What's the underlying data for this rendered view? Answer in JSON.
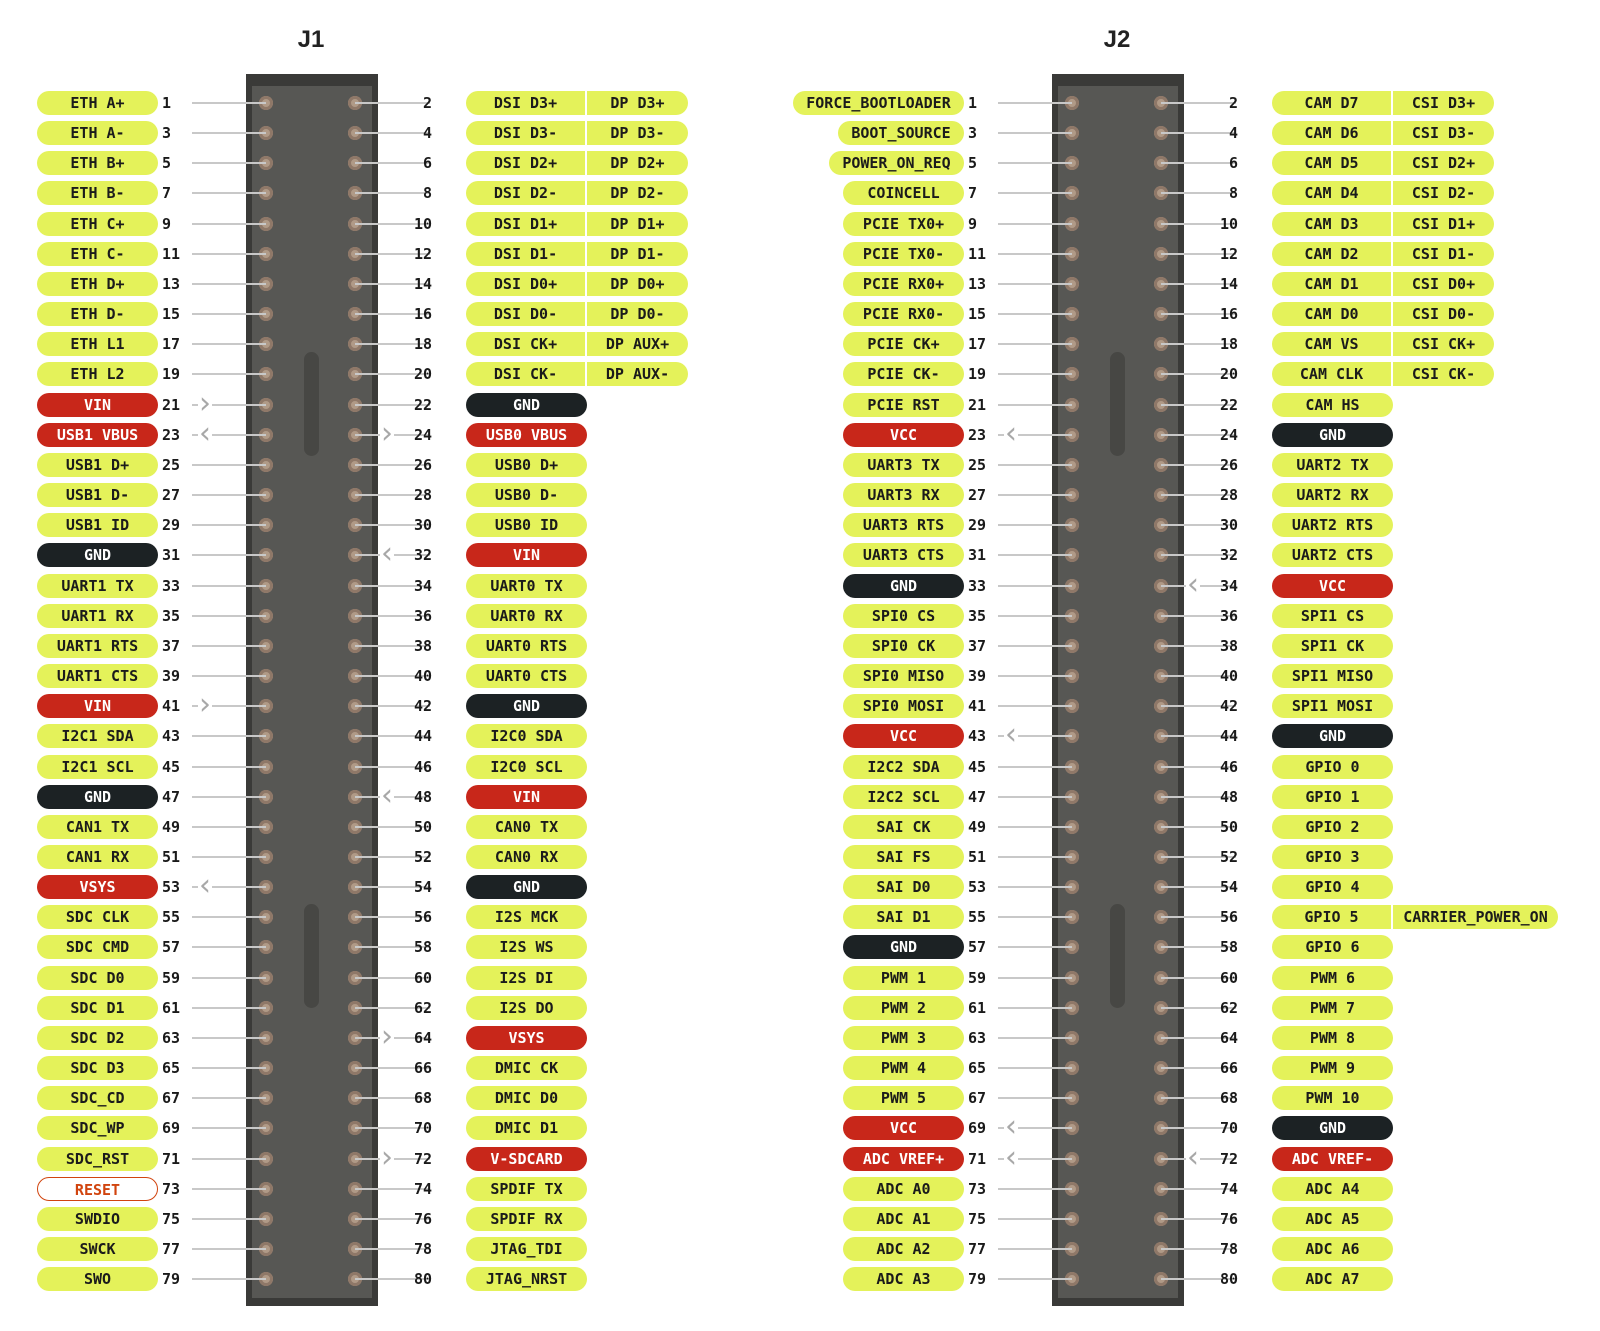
{
  "connectors": [
    {
      "title": "J1",
      "left": {
        "1": {
          "labels": [
            "ETH A+"
          ],
          "type": "signal"
        },
        "3": {
          "labels": [
            "ETH A-"
          ],
          "type": "signal"
        },
        "5": {
          "labels": [
            "ETH B+"
          ],
          "type": "signal"
        },
        "7": {
          "labels": [
            "ETH B-"
          ],
          "type": "signal"
        },
        "9": {
          "labels": [
            "ETH C+"
          ],
          "type": "signal"
        },
        "11": {
          "labels": [
            "ETH C-"
          ],
          "type": "signal"
        },
        "13": {
          "labels": [
            "ETH D+"
          ],
          "type": "signal"
        },
        "15": {
          "labels": [
            "ETH D-"
          ],
          "type": "signal"
        },
        "17": {
          "labels": [
            "ETH L1"
          ],
          "type": "signal"
        },
        "19": {
          "labels": [
            "ETH L2"
          ],
          "type": "signal"
        },
        "21": {
          "labels": [
            "VIN"
          ],
          "type": "power",
          "arrow": "in"
        },
        "23": {
          "labels": [
            "USB1 VBUS"
          ],
          "type": "power",
          "arrow": "out"
        },
        "25": {
          "labels": [
            "USB1 D+"
          ],
          "type": "signal"
        },
        "27": {
          "labels": [
            "USB1 D-"
          ],
          "type": "signal"
        },
        "29": {
          "labels": [
            "USB1 ID"
          ],
          "type": "signal"
        },
        "31": {
          "labels": [
            "GND"
          ],
          "type": "ground"
        },
        "33": {
          "labels": [
            "UART1 TX"
          ],
          "type": "signal"
        },
        "35": {
          "labels": [
            "UART1 RX"
          ],
          "type": "signal"
        },
        "37": {
          "labels": [
            "UART1 RTS"
          ],
          "type": "signal"
        },
        "39": {
          "labels": [
            "UART1 CTS"
          ],
          "type": "signal"
        },
        "41": {
          "labels": [
            "VIN"
          ],
          "type": "power",
          "arrow": "in"
        },
        "43": {
          "labels": [
            "I2C1 SDA"
          ],
          "type": "signal"
        },
        "45": {
          "labels": [
            "I2C1 SCL"
          ],
          "type": "signal"
        },
        "47": {
          "labels": [
            "GND"
          ],
          "type": "ground"
        },
        "49": {
          "labels": [
            "CAN1 TX"
          ],
          "type": "signal"
        },
        "51": {
          "labels": [
            "CAN1 RX"
          ],
          "type": "signal"
        },
        "53": {
          "labels": [
            "VSYS"
          ],
          "type": "power",
          "arrow": "out"
        },
        "55": {
          "labels": [
            "SDC CLK"
          ],
          "type": "signal"
        },
        "57": {
          "labels": [
            "SDC CMD"
          ],
          "type": "signal"
        },
        "59": {
          "labels": [
            "SDC D0"
          ],
          "type": "signal"
        },
        "61": {
          "labels": [
            "SDC D1"
          ],
          "type": "signal"
        },
        "63": {
          "labels": [
            "SDC D2"
          ],
          "type": "signal"
        },
        "65": {
          "labels": [
            "SDC D3"
          ],
          "type": "signal"
        },
        "67": {
          "labels": [
            "SDC_CD"
          ],
          "type": "signal"
        },
        "69": {
          "labels": [
            "SDC_WP"
          ],
          "type": "signal"
        },
        "71": {
          "labels": [
            "SDC_RST"
          ],
          "type": "signal"
        },
        "73": {
          "labels": [
            "RESET"
          ],
          "type": "reset"
        },
        "75": {
          "labels": [
            "SWDIO"
          ],
          "type": "signal"
        },
        "77": {
          "labels": [
            "SWCK"
          ],
          "type": "signal"
        },
        "79": {
          "labels": [
            "SWO"
          ],
          "type": "signal"
        }
      },
      "right": {
        "2": {
          "labels": [
            "DSI D3+",
            "DP D3+"
          ],
          "type": "signal"
        },
        "4": {
          "labels": [
            "DSI D3-",
            "DP D3-"
          ],
          "type": "signal"
        },
        "6": {
          "labels": [
            "DSI D2+",
            "DP D2+"
          ],
          "type": "signal"
        },
        "8": {
          "labels": [
            "DSI D2-",
            "DP D2-"
          ],
          "type": "signal"
        },
        "10": {
          "labels": [
            "DSI D1+",
            "DP D1+"
          ],
          "type": "signal"
        },
        "12": {
          "labels": [
            "DSI D1-",
            "DP D1-"
          ],
          "type": "signal"
        },
        "14": {
          "labels": [
            "DSI D0+",
            "DP D0+"
          ],
          "type": "signal"
        },
        "16": {
          "labels": [
            "DSI D0-",
            "DP D0-"
          ],
          "type": "signal"
        },
        "18": {
          "labels": [
            "DSI CK+",
            "DP AUX+"
          ],
          "type": "signal"
        },
        "20": {
          "labels": [
            "DSI CK-",
            "DP AUX-"
          ],
          "type": "signal"
        },
        "22": {
          "labels": [
            "GND"
          ],
          "type": "ground"
        },
        "24": {
          "labels": [
            "USB0 VBUS"
          ],
          "type": "power",
          "arrow": "out"
        },
        "26": {
          "labels": [
            "USB0 D+"
          ],
          "type": "signal"
        },
        "28": {
          "labels": [
            "USB0 D-"
          ],
          "type": "signal"
        },
        "30": {
          "labels": [
            "USB0 ID"
          ],
          "type": "signal"
        },
        "32": {
          "labels": [
            "VIN"
          ],
          "type": "power",
          "arrow": "in"
        },
        "34": {
          "labels": [
            "UART0 TX"
          ],
          "type": "signal"
        },
        "36": {
          "labels": [
            "UART0 RX"
          ],
          "type": "signal"
        },
        "38": {
          "labels": [
            "UART0 RTS"
          ],
          "type": "signal"
        },
        "40": {
          "labels": [
            "UART0 CTS"
          ],
          "type": "signal"
        },
        "42": {
          "labels": [
            "GND"
          ],
          "type": "ground"
        },
        "44": {
          "labels": [
            "I2C0 SDA"
          ],
          "type": "signal"
        },
        "46": {
          "labels": [
            "I2C0 SCL"
          ],
          "type": "signal"
        },
        "48": {
          "labels": [
            "VIN"
          ],
          "type": "power",
          "arrow": "in"
        },
        "50": {
          "labels": [
            "CAN0 TX"
          ],
          "type": "signal"
        },
        "52": {
          "labels": [
            "CAN0 RX"
          ],
          "type": "signal"
        },
        "54": {
          "labels": [
            "GND"
          ],
          "type": "ground"
        },
        "56": {
          "labels": [
            "I2S MCK"
          ],
          "type": "signal"
        },
        "58": {
          "labels": [
            "I2S WS"
          ],
          "type": "signal"
        },
        "60": {
          "labels": [
            "I2S DI"
          ],
          "type": "signal"
        },
        "62": {
          "labels": [
            "I2S DO"
          ],
          "type": "signal"
        },
        "64": {
          "labels": [
            "VSYS"
          ],
          "type": "power",
          "arrow": "out"
        },
        "66": {
          "labels": [
            "DMIC CK"
          ],
          "type": "signal"
        },
        "68": {
          "labels": [
            "DMIC D0"
          ],
          "type": "signal"
        },
        "70": {
          "labels": [
            "DMIC D1"
          ],
          "type": "signal"
        },
        "72": {
          "labels": [
            "V-SDCARD"
          ],
          "type": "power",
          "arrow": "out"
        },
        "74": {
          "labels": [
            "SPDIF TX"
          ],
          "type": "signal"
        },
        "76": {
          "labels": [
            "SPDIF RX"
          ],
          "type": "signal"
        },
        "78": {
          "labels": [
            "JTAG_TDI"
          ],
          "type": "signal"
        },
        "80": {
          "labels": [
            "JTAG_NRST"
          ],
          "type": "signal"
        }
      }
    },
    {
      "title": "J2",
      "left": {
        "1": {
          "labels": [
            "FORCE_BOOTLOADER"
          ],
          "type": "signal"
        },
        "3": {
          "labels": [
            "BOOT_SOURCE"
          ],
          "type": "signal"
        },
        "5": {
          "labels": [
            "POWER_ON_REQ"
          ],
          "type": "signal"
        },
        "7": {
          "labels": [
            "COINCELL"
          ],
          "type": "signal"
        },
        "9": {
          "labels": [
            "PCIE TX0+"
          ],
          "type": "signal"
        },
        "11": {
          "labels": [
            "PCIE TX0-"
          ],
          "type": "signal"
        },
        "13": {
          "labels": [
            "PCIE RX0+"
          ],
          "type": "signal"
        },
        "15": {
          "labels": [
            "PCIE RX0-"
          ],
          "type": "signal"
        },
        "17": {
          "labels": [
            "PCIE CK+"
          ],
          "type": "signal"
        },
        "19": {
          "labels": [
            "PCIE CK-"
          ],
          "type": "signal"
        },
        "21": {
          "labels": [
            "PCIE RST"
          ],
          "type": "signal"
        },
        "23": {
          "labels": [
            "VCC"
          ],
          "type": "power",
          "arrow": "out"
        },
        "25": {
          "labels": [
            "UART3 TX"
          ],
          "type": "signal"
        },
        "27": {
          "labels": [
            "UART3 RX"
          ],
          "type": "signal"
        },
        "29": {
          "labels": [
            "UART3 RTS"
          ],
          "type": "signal"
        },
        "31": {
          "labels": [
            "UART3 CTS"
          ],
          "type": "signal"
        },
        "33": {
          "labels": [
            "GND"
          ],
          "type": "ground"
        },
        "35": {
          "labels": [
            "SPI0 CS"
          ],
          "type": "signal"
        },
        "37": {
          "labels": [
            "SPI0 CK"
          ],
          "type": "signal"
        },
        "39": {
          "labels": [
            "SPI0 MISO"
          ],
          "type": "signal"
        },
        "41": {
          "labels": [
            "SPI0 MOSI"
          ],
          "type": "signal"
        },
        "43": {
          "labels": [
            "VCC"
          ],
          "type": "power",
          "arrow": "out"
        },
        "45": {
          "labels": [
            "I2C2 SDA"
          ],
          "type": "signal"
        },
        "47": {
          "labels": [
            "I2C2 SCL"
          ],
          "type": "signal"
        },
        "49": {
          "labels": [
            "SAI CK"
          ],
          "type": "signal"
        },
        "51": {
          "labels": [
            "SAI FS"
          ],
          "type": "signal"
        },
        "53": {
          "labels": [
            "SAI D0"
          ],
          "type": "signal"
        },
        "55": {
          "labels": [
            "SAI D1"
          ],
          "type": "signal"
        },
        "57": {
          "labels": [
            "GND"
          ],
          "type": "ground"
        },
        "59": {
          "labels": [
            "PWM 1"
          ],
          "type": "signal"
        },
        "61": {
          "labels": [
            "PWM 2"
          ],
          "type": "signal"
        },
        "63": {
          "labels": [
            "PWM 3"
          ],
          "type": "signal"
        },
        "65": {
          "labels": [
            "PWM 4"
          ],
          "type": "signal"
        },
        "67": {
          "labels": [
            "PWM 5"
          ],
          "type": "signal"
        },
        "69": {
          "labels": [
            "VCC"
          ],
          "type": "power",
          "arrow": "out"
        },
        "71": {
          "labels": [
            "ADC VREF+"
          ],
          "type": "power",
          "arrow": "out"
        },
        "73": {
          "labels": [
            "ADC A0"
          ],
          "type": "signal"
        },
        "75": {
          "labels": [
            "ADC A1"
          ],
          "type": "signal"
        },
        "77": {
          "labels": [
            "ADC A2"
          ],
          "type": "signal"
        },
        "79": {
          "labels": [
            "ADC A3"
          ],
          "type": "signal"
        }
      },
      "right": {
        "2": {
          "labels": [
            "CAM D7",
            "CSI D3+"
          ],
          "type": "signal"
        },
        "4": {
          "labels": [
            "CAM D6",
            "CSI D3-"
          ],
          "type": "signal"
        },
        "6": {
          "labels": [
            "CAM D5",
            "CSI D2+"
          ],
          "type": "signal"
        },
        "8": {
          "labels": [
            "CAM D4",
            "CSI D2-"
          ],
          "type": "signal"
        },
        "10": {
          "labels": [
            "CAM D3",
            "CSI D1+"
          ],
          "type": "signal"
        },
        "12": {
          "labels": [
            "CAM D2",
            "CSI D1-"
          ],
          "type": "signal"
        },
        "14": {
          "labels": [
            "CAM D1",
            "CSI D0+"
          ],
          "type": "signal"
        },
        "16": {
          "labels": [
            "CAM D0",
            "CSI D0-"
          ],
          "type": "signal"
        },
        "18": {
          "labels": [
            "CAM VS",
            "CSI CK+"
          ],
          "type": "signal"
        },
        "20": {
          "labels": [
            "CAM CLK",
            "CSI CK-"
          ],
          "type": "signal"
        },
        "22": {
          "labels": [
            "CAM HS"
          ],
          "type": "signal"
        },
        "24": {
          "labels": [
            "GND"
          ],
          "type": "ground"
        },
        "26": {
          "labels": [
            "UART2 TX"
          ],
          "type": "signal"
        },
        "28": {
          "labels": [
            "UART2 RX"
          ],
          "type": "signal"
        },
        "30": {
          "labels": [
            "UART2 RTS"
          ],
          "type": "signal"
        },
        "32": {
          "labels": [
            "UART2 CTS"
          ],
          "type": "signal"
        },
        "34": {
          "labels": [
            "VCC"
          ],
          "type": "power",
          "arrow": "in"
        },
        "36": {
          "labels": [
            "SPI1 CS"
          ],
          "type": "signal"
        },
        "38": {
          "labels": [
            "SPI1 CK"
          ],
          "type": "signal"
        },
        "40": {
          "labels": [
            "SPI1 MISO"
          ],
          "type": "signal"
        },
        "42": {
          "labels": [
            "SPI1 MOSI"
          ],
          "type": "signal"
        },
        "44": {
          "labels": [
            "GND"
          ],
          "type": "ground"
        },
        "46": {
          "labels": [
            "GPIO 0"
          ],
          "type": "signal"
        },
        "48": {
          "labels": [
            "GPIO 1"
          ],
          "type": "signal"
        },
        "50": {
          "labels": [
            "GPIO 2"
          ],
          "type": "signal"
        },
        "52": {
          "labels": [
            "GPIO 3"
          ],
          "type": "signal"
        },
        "54": {
          "labels": [
            "GPIO 4"
          ],
          "type": "signal"
        },
        "56": {
          "labels": [
            "GPIO 5",
            "CARRIER_POWER_ON"
          ],
          "type": "signal"
        },
        "58": {
          "labels": [
            "GPIO 6"
          ],
          "type": "signal"
        },
        "60": {
          "labels": [
            "PWM 6"
          ],
          "type": "signal"
        },
        "62": {
          "labels": [
            "PWM 7"
          ],
          "type": "signal"
        },
        "64": {
          "labels": [
            "PWM 8"
          ],
          "type": "signal"
        },
        "66": {
          "labels": [
            "PWM 9"
          ],
          "type": "signal"
        },
        "68": {
          "labels": [
            "PWM 10"
          ],
          "type": "signal"
        },
        "70": {
          "labels": [
            "GND"
          ],
          "type": "ground"
        },
        "72": {
          "labels": [
            "ADC VREF-"
          ],
          "type": "power",
          "arrow": "in"
        },
        "74": {
          "labels": [
            "ADC A4"
          ],
          "type": "signal"
        },
        "76": {
          "labels": [
            "ADC A5"
          ],
          "type": "signal"
        },
        "78": {
          "labels": [
            "ADC A6"
          ],
          "type": "signal"
        },
        "80": {
          "labels": [
            "ADC A7"
          ],
          "type": "signal"
        }
      }
    }
  ],
  "colors": {
    "signal": "#e4f25a",
    "power": "#c8271a",
    "ground": "#1c2224",
    "reset_border": "#d1440e",
    "header_body": "#575754"
  }
}
